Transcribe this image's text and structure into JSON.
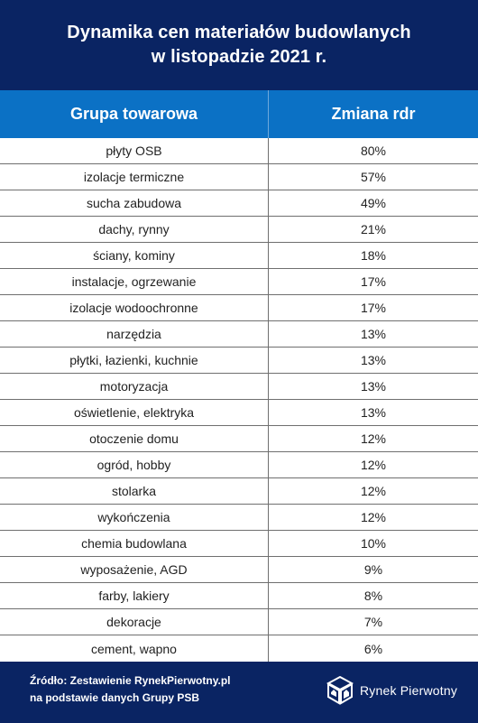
{
  "header": {
    "title_line1": "Dynamika cen materiałów budowlanych",
    "title_line2": "w listopadzie 2021 r."
  },
  "table": {
    "columns": [
      "Grupa towarowa",
      "Zmiana rdr"
    ],
    "rows": [
      {
        "group": "płyty OSB",
        "change": "80%"
      },
      {
        "group": "izolacje termiczne",
        "change": "57%"
      },
      {
        "group": "sucha zabudowa",
        "change": "49%"
      },
      {
        "group": "dachy, rynny",
        "change": "21%"
      },
      {
        "group": "ściany, kominy",
        "change": "18%"
      },
      {
        "group": "instalacje, ogrzewanie",
        "change": "17%"
      },
      {
        "group": "izolacje wodoochronne",
        "change": "17%"
      },
      {
        "group": "narzędzia",
        "change": "13%"
      },
      {
        "group": "płytki, łazienki, kuchnie",
        "change": "13%"
      },
      {
        "group": "motoryzacja",
        "change": "13%"
      },
      {
        "group": "oświetlenie, elektryka",
        "change": "13%"
      },
      {
        "group": "otoczenie domu",
        "change": "12%"
      },
      {
        "group": "ogród, hobby",
        "change": "12%"
      },
      {
        "group": "stolarka",
        "change": "12%"
      },
      {
        "group": "wykończenia",
        "change": "12%"
      },
      {
        "group": "chemia budowlana",
        "change": "10%"
      },
      {
        "group": "wyposażenie, AGD",
        "change": "9%"
      },
      {
        "group": "farby, lakiery",
        "change": "8%"
      },
      {
        "group": "dekoracje",
        "change": "7%"
      },
      {
        "group": "cement, wapno",
        "change": "6%"
      }
    ]
  },
  "footer": {
    "source_line1": "Źródło: Zestawienie RynekPierwotny.pl",
    "source_line2": "na podstawie danych Grupy PSB",
    "logo_text": "Rynek Pierwotny",
    "logo_icon": "cube-houses-icon"
  },
  "colors": {
    "navy": "#0a2463",
    "blue_header": "#0b71c5",
    "row_bg": "#ffffff",
    "grid": "#6f6f6f"
  }
}
